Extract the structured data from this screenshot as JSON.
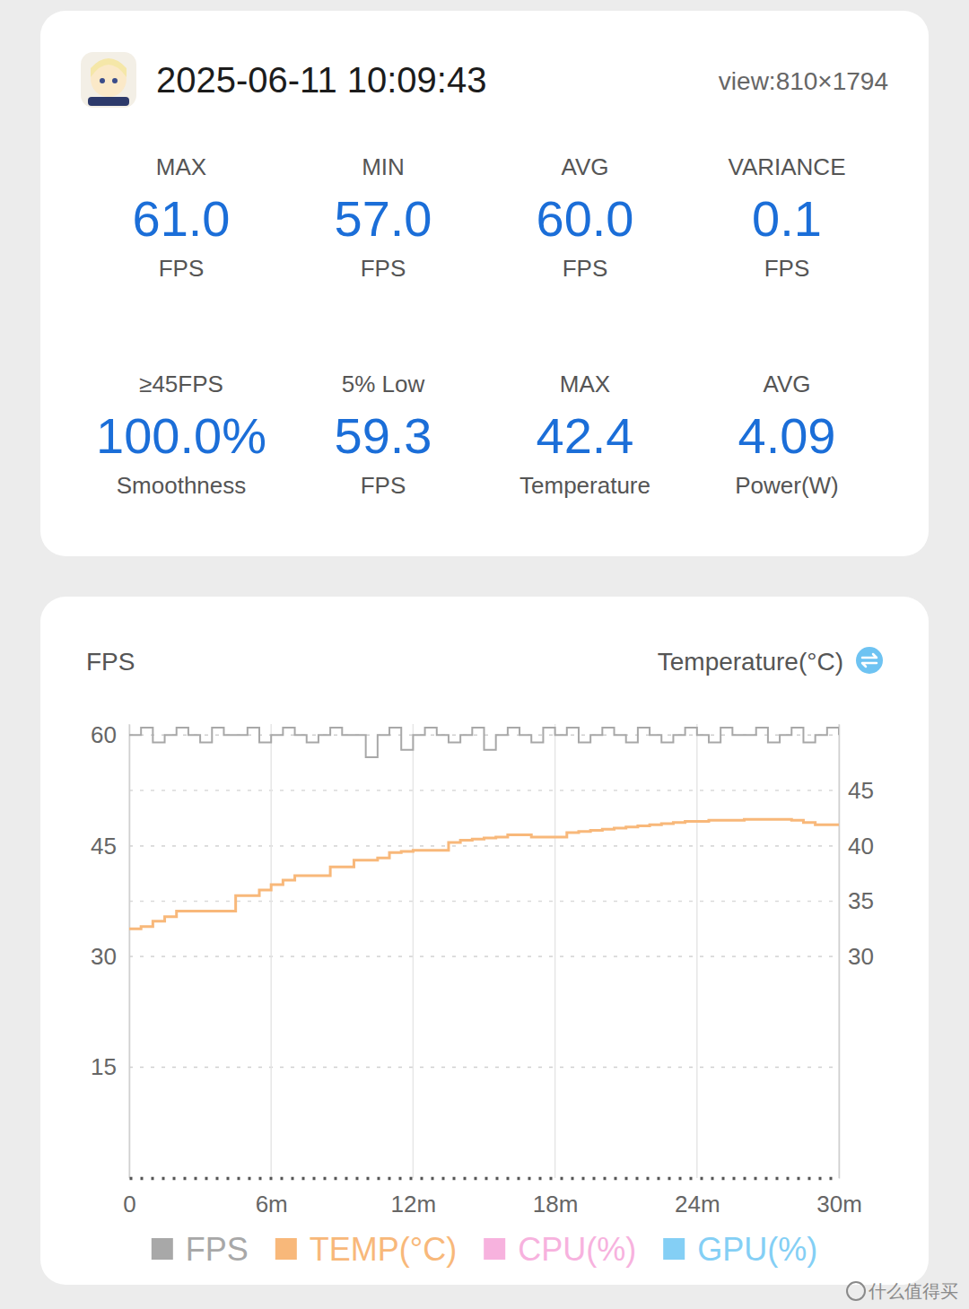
{
  "header": {
    "date": "2025-06-11 10:09:43",
    "view": "view:810×1794"
  },
  "stats": [
    {
      "label": "MAX",
      "value": "61.0",
      "unit": "FPS"
    },
    {
      "label": "MIN",
      "value": "57.0",
      "unit": "FPS"
    },
    {
      "label": "AVG",
      "value": "60.0",
      "unit": "FPS"
    },
    {
      "label": "VARIANCE",
      "value": "0.1",
      "unit": "FPS"
    },
    {
      "label": "≥45FPS",
      "value": "100.0%",
      "unit": "Smoothness"
    },
    {
      "label": "5% Low",
      "value": "59.3",
      "unit": "FPS"
    },
    {
      "label": "MAX",
      "value": "42.4",
      "unit": "Temperature"
    },
    {
      "label": "AVG",
      "value": "4.09",
      "unit": "Power(W)"
    }
  ],
  "chart_data": {
    "type": "line",
    "ylabel": "FPS",
    "y2label": "Temperature(°C)",
    "x": [
      0,
      0.5,
      1,
      1.5,
      2,
      2.5,
      3,
      3.5,
      4,
      4.5,
      5,
      5.5,
      6,
      6.5,
      7,
      7.5,
      8,
      8.5,
      9,
      9.5,
      10,
      10.5,
      11,
      11.5,
      12,
      12.5,
      13,
      13.5,
      14,
      14.5,
      15,
      15.5,
      16,
      16.5,
      17,
      17.5,
      18,
      18.5,
      19,
      19.5,
      20,
      20.5,
      21,
      21.5,
      22,
      22.5,
      23,
      23.5,
      24,
      24.5,
      25,
      25.5,
      26,
      26.5,
      27,
      27.5,
      28,
      28.5,
      29,
      29.5,
      30
    ],
    "xlim": [
      0,
      30
    ],
    "xticks": [
      0,
      {
        "value": 6,
        "label": "6m"
      },
      {
        "value": 12,
        "label": "12m"
      },
      {
        "value": 18,
        "label": "18m"
      },
      {
        "value": 24,
        "label": "24m"
      },
      {
        "value": 30,
        "label": "30m"
      }
    ],
    "ylim": [
      0,
      61.5
    ],
    "yticks": [
      15,
      30,
      45,
      60
    ],
    "y2lim": [
      10,
      51
    ],
    "y2ticks": [
      30,
      35,
      40,
      45
    ],
    "grid": true,
    "legend": "bottom",
    "series": [
      {
        "name": "FPS",
        "color": "#a8a8a8",
        "line_style": "step",
        "values": [
          60,
          61,
          59,
          60,
          61,
          60,
          59,
          61,
          60,
          60,
          61,
          59,
          60,
          61,
          60,
          59,
          60,
          61,
          60,
          60,
          57,
          60,
          61,
          58,
          60,
          61,
          60,
          59,
          60,
          61,
          58,
          60,
          61,
          60,
          59,
          61,
          60,
          61,
          59,
          60,
          61,
          60,
          59,
          61,
          60,
          59,
          60,
          61,
          60,
          59,
          61,
          60,
          60,
          61,
          59,
          60,
          61,
          59,
          60,
          61,
          60
        ]
      },
      {
        "name": "TEMP(°C)",
        "color": "#f8b87a",
        "axis": "y2",
        "line_style": "step",
        "values": [
          32.5,
          32.7,
          33.2,
          33.6,
          34.1,
          34.1,
          34.1,
          34.1,
          34.1,
          35.5,
          35.5,
          36.0,
          36.5,
          36.9,
          37.3,
          37.3,
          37.3,
          38.1,
          38.1,
          38.7,
          38.7,
          38.9,
          39.4,
          39.5,
          39.6,
          39.6,
          39.6,
          40.3,
          40.5,
          40.6,
          40.7,
          40.8,
          41.0,
          41.0,
          40.8,
          40.8,
          40.8,
          41.2,
          41.3,
          41.4,
          41.5,
          41.6,
          41.7,
          41.8,
          41.9,
          42.0,
          42.1,
          42.2,
          42.2,
          42.3,
          42.3,
          42.3,
          42.4,
          42.4,
          42.4,
          42.4,
          42.3,
          42.1,
          41.9,
          41.9,
          41.8
        ]
      },
      {
        "name": "CPU(%)",
        "color": "#f7b2de",
        "values": [
          null,
          null,
          null,
          null,
          null,
          null,
          null,
          null,
          null,
          null,
          null,
          null,
          null,
          null,
          null,
          null,
          null,
          null,
          null,
          null,
          null,
          null,
          null,
          null,
          null,
          null,
          null,
          null,
          null,
          null,
          null,
          null,
          null,
          null,
          null,
          null,
          null,
          null,
          null,
          null,
          null,
          null,
          null,
          null,
          null,
          null,
          null,
          null,
          null,
          null,
          null,
          null,
          null,
          null,
          null,
          null,
          null,
          null,
          null,
          null,
          null
        ]
      },
      {
        "name": "GPU(%)",
        "color": "#84cff5",
        "values": [
          null,
          null,
          null,
          null,
          null,
          null,
          null,
          null,
          null,
          null,
          null,
          null,
          null,
          null,
          null,
          null,
          null,
          null,
          null,
          null,
          null,
          null,
          null,
          null,
          null,
          null,
          null,
          null,
          null,
          null,
          null,
          null,
          null,
          null,
          null,
          null,
          null,
          null,
          null,
          null,
          null,
          null,
          null,
          null,
          null,
          null,
          null,
          null,
          null,
          null,
          null,
          null,
          null,
          null,
          null,
          null,
          null,
          null,
          null,
          null,
          null
        ]
      }
    ]
  },
  "watermark": "什么值得买"
}
